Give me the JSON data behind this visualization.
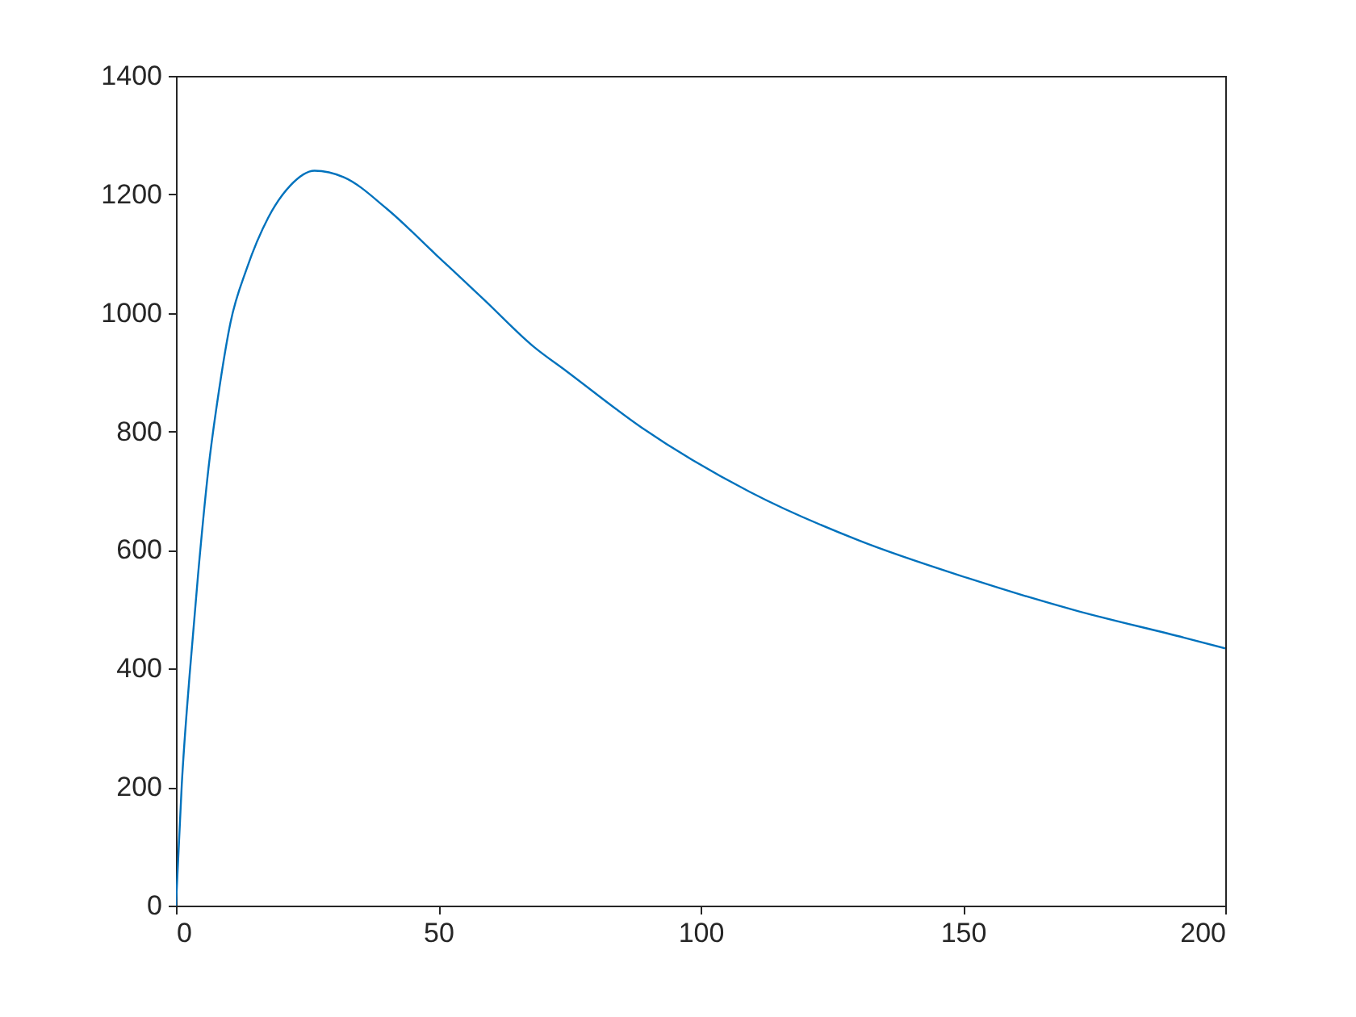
{
  "chart_data": {
    "type": "line",
    "x": [
      0,
      1.1,
      2.6,
      4.2,
      6.2,
      8.3,
      10.4,
      13.5,
      17.6,
      21.8,
      26.4,
      32,
      40.3,
      49.6,
      58.9,
      68.2,
      74.4,
      88.7,
      109.4,
      130.2,
      150.8,
      171.5,
      192.2,
      200
    ],
    "series": [
      {
        "color": "#0072bd",
        "values": [
          0,
          203,
          389,
          557,
          738,
          875,
          984,
          1075,
          1161,
          1215,
          1240,
          1229,
          1175,
          1098,
          1021,
          943,
          902,
          807,
          698,
          616,
          553,
          498,
          452,
          434
        ]
      }
    ],
    "xlim": [
      0,
      200
    ],
    "xticks": [
      0,
      50,
      100,
      150,
      200
    ],
    "ylim": [
      0,
      1400
    ],
    "yticks": [
      0,
      200,
      400,
      600,
      800,
      1000,
      1200,
      1400
    ],
    "grid": false,
    "legend": false,
    "marker": "none",
    "line_style": "solid"
  }
}
